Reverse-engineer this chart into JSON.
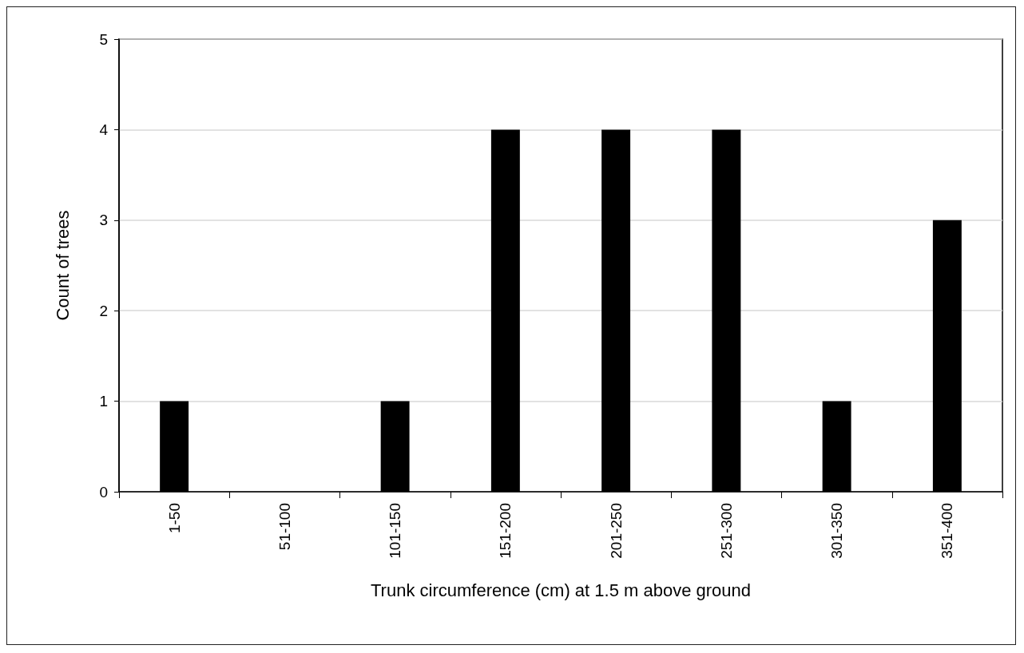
{
  "chart_data": {
    "type": "bar",
    "xlabel": "Trunk circumference (cm) at 1.5 m above ground",
    "ylabel": "Count of trees",
    "categories": [
      "1-50",
      "51-100",
      "101-150",
      "151-200",
      "201-250",
      "251-300",
      "301-350",
      "351-400"
    ],
    "values": [
      1,
      0,
      1,
      4,
      4,
      4,
      1,
      3
    ],
    "color": "#000000",
    "ylim": [
      0,
      5
    ],
    "yticks": [
      0,
      1,
      2,
      3,
      4,
      5
    ],
    "grid": "y"
  }
}
